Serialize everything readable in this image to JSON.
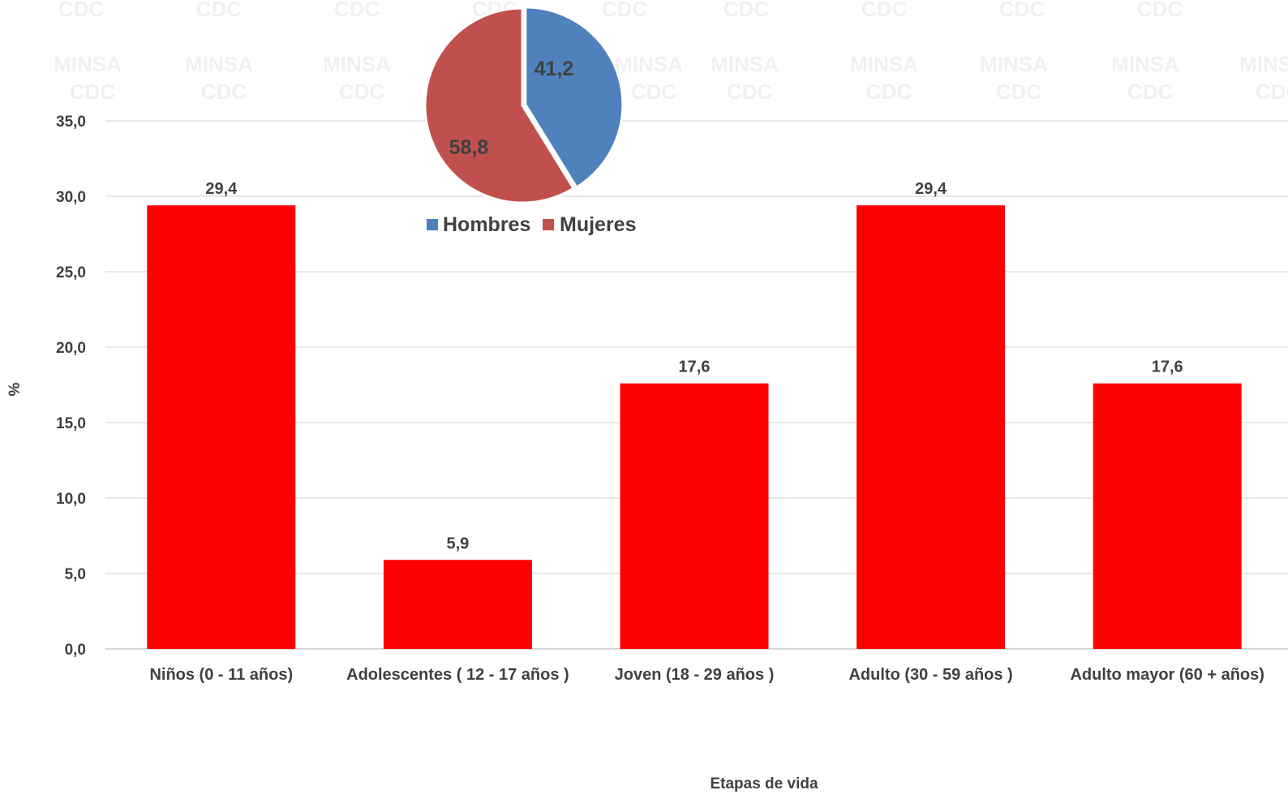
{
  "watermark": {
    "line1": "CDC",
    "line2": "MINSA",
    "color": "#f0f0f0"
  },
  "chart_data": [
    {
      "type": "bar",
      "categories": [
        "Niños (0 - 11 años)",
        "Adolescentes ( 12 - 17 años )",
        "Joven (18 - 29 años )",
        "Adulto (30 - 59 años )",
        "Adulto mayor (60 + años)"
      ],
      "values": [
        29.4,
        5.9,
        17.6,
        29.4,
        17.6
      ],
      "data_labels": [
        "29,4",
        "5,9",
        "17,6",
        "29,4",
        "17,6"
      ],
      "xlabel": "Etapas de vida",
      "ylabel": "%",
      "ylim": [
        0,
        35
      ],
      "yticks": [
        0,
        5,
        10,
        15,
        20,
        25,
        30,
        35
      ],
      "ytick_labels": [
        "0,0",
        "5,0",
        "10,0",
        "15,0",
        "20,0",
        "25,0",
        "30,0",
        "35,0"
      ],
      "grid": true,
      "bar_color": "#ff0000"
    },
    {
      "type": "pie",
      "slices": [
        {
          "name": "Hombres",
          "value": 41.2,
          "label": "41,2",
          "color": "#4f81bd"
        },
        {
          "name": "Mujeres",
          "value": 58.8,
          "label": "58,8",
          "color": "#c0504d"
        }
      ],
      "legend_position": "bottom"
    }
  ]
}
